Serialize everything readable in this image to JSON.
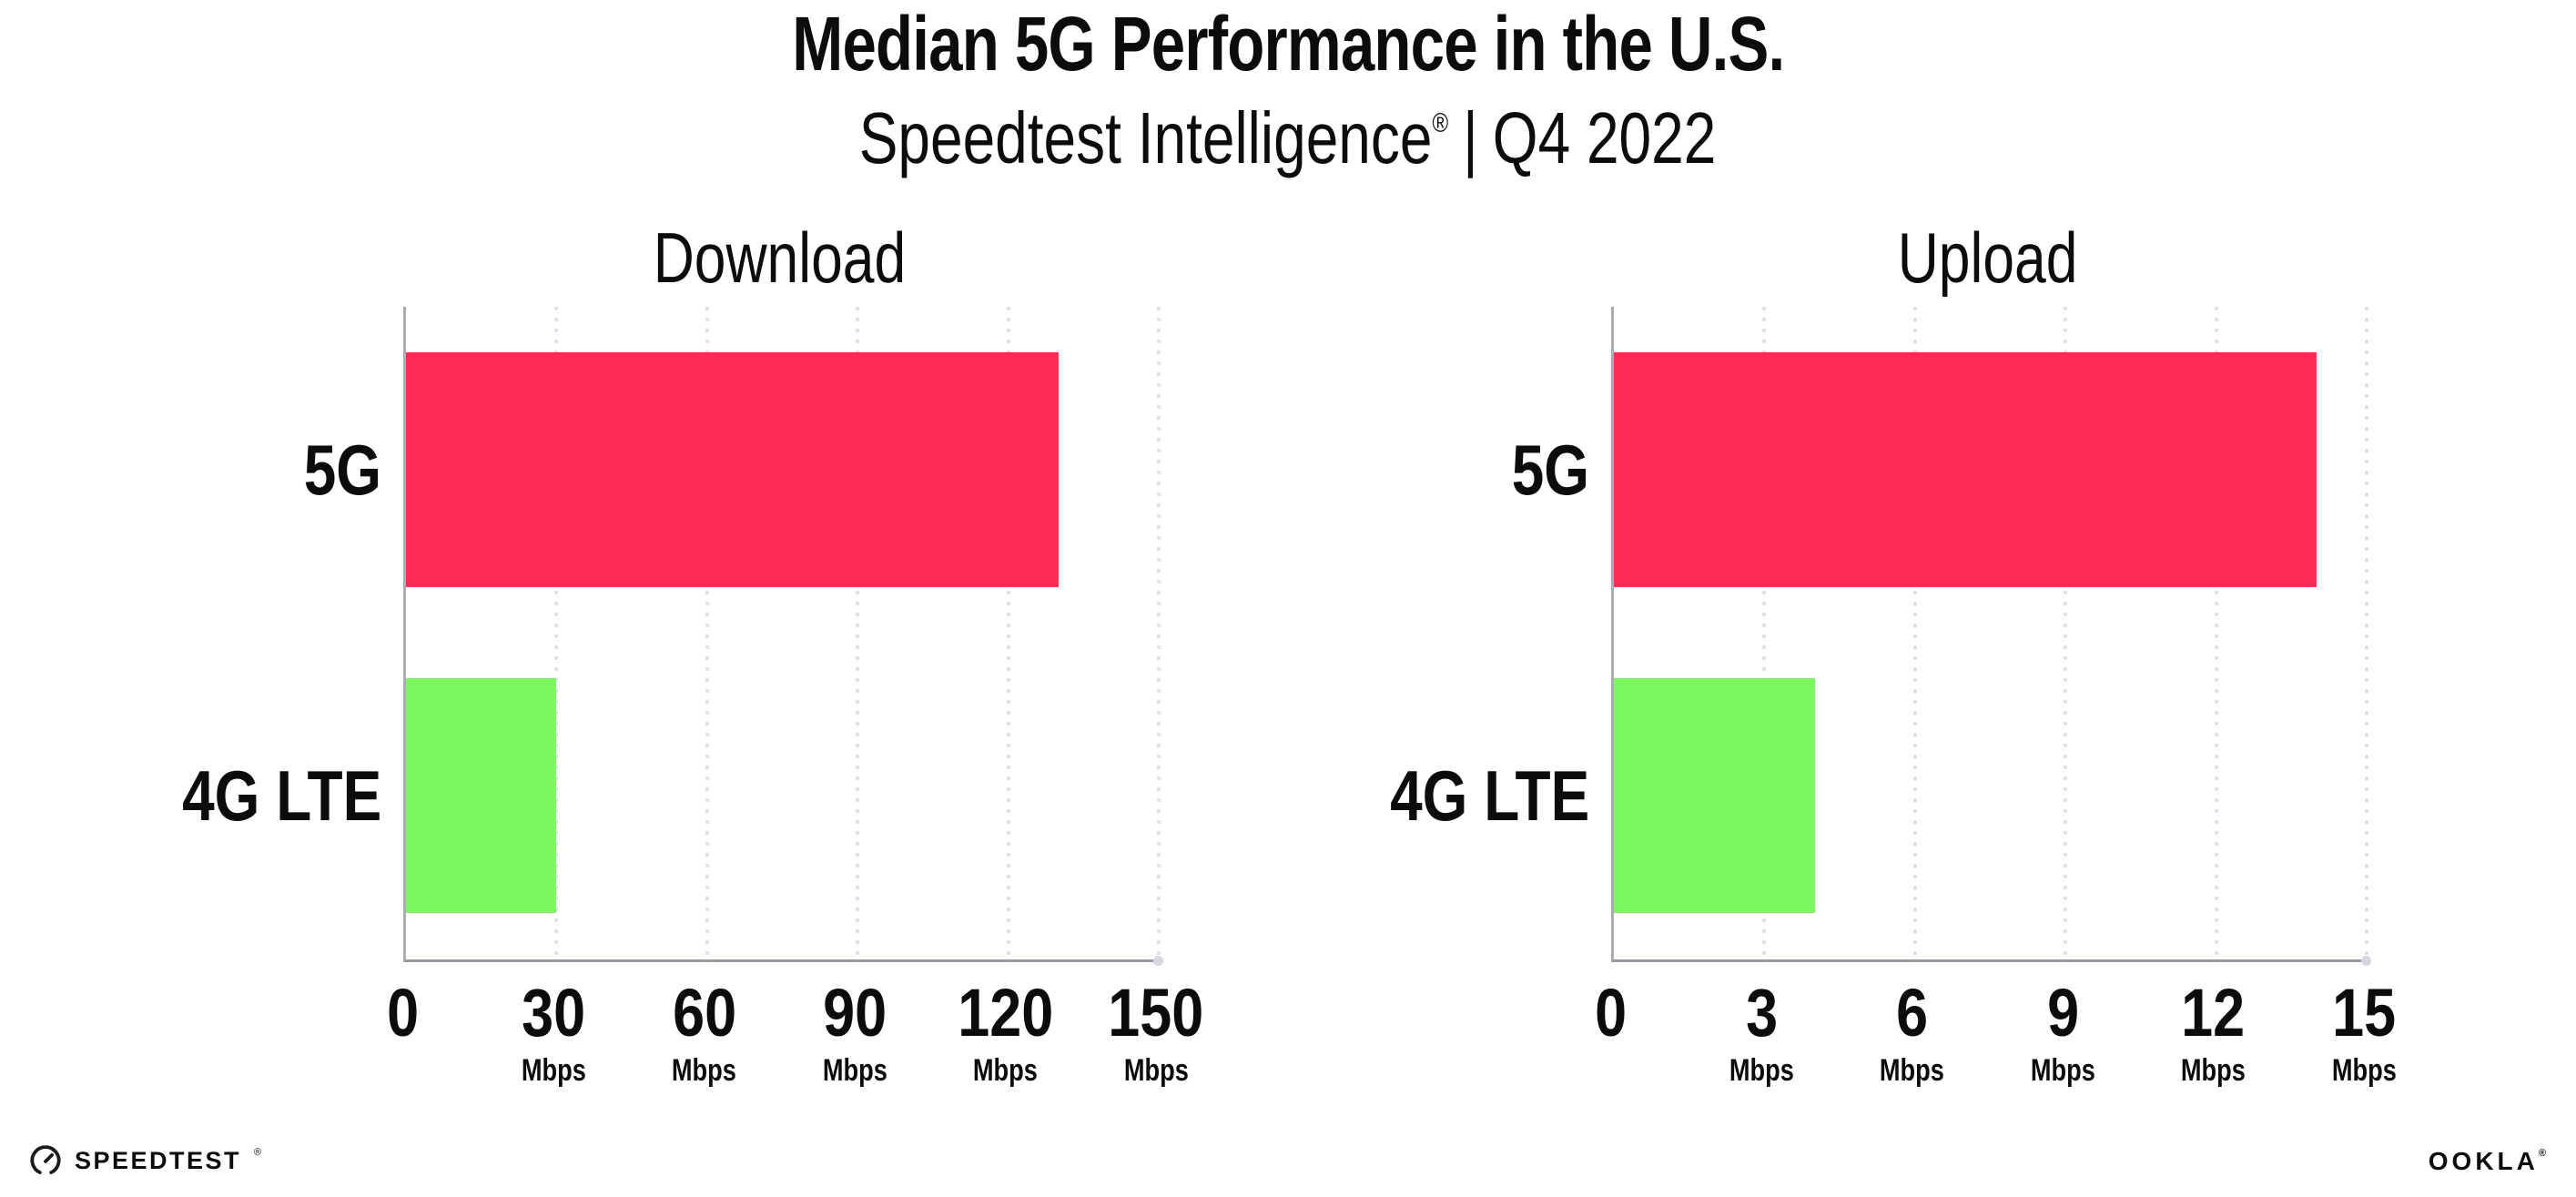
{
  "header": {
    "title": "Median 5G Performance in the U.S.",
    "subtitle_brand": "Speedtest Intelligence",
    "subtitle_reg": "®",
    "subtitle_divider": "|",
    "subtitle_period": "Q4 2022"
  },
  "colors": {
    "bar_5g": "#FF2E56",
    "bar_4g_lte": "#7DF761",
    "axis": "#a6a6ae",
    "gridline": "#e0e0ea",
    "text": "#0c0c0c",
    "background": "#ffffff"
  },
  "chart_data": [
    {
      "type": "bar",
      "orientation": "horizontal",
      "title": "Download",
      "categories": [
        "5G",
        "4G LTE"
      ],
      "values": [
        130,
        30
      ],
      "unit": "Mbps",
      "xlim": [
        0,
        150
      ],
      "tick_values": [
        0,
        30,
        60,
        90,
        120,
        150
      ],
      "x_ticks": [
        {
          "label": "0",
          "unit": ""
        },
        {
          "label": "30",
          "unit": "Mbps"
        },
        {
          "label": "60",
          "unit": "Mbps"
        },
        {
          "label": "90",
          "unit": "Mbps"
        },
        {
          "label": "120",
          "unit": "Mbps"
        },
        {
          "label": "150",
          "unit": "Mbps"
        }
      ],
      "bar_colors": [
        "#FF2E56",
        "#7DF761"
      ],
      "grid": "dotted-vertical",
      "legend": false
    },
    {
      "type": "bar",
      "orientation": "horizontal",
      "title": "Upload",
      "categories": [
        "5G",
        "4G LTE"
      ],
      "values": [
        14,
        4
      ],
      "unit": "Mbps",
      "xlim": [
        0,
        15
      ],
      "tick_values": [
        0,
        3,
        6,
        9,
        12,
        15
      ],
      "x_ticks": [
        {
          "label": "0",
          "unit": ""
        },
        {
          "label": "3",
          "unit": "Mbps"
        },
        {
          "label": "6",
          "unit": "Mbps"
        },
        {
          "label": "9",
          "unit": "Mbps"
        },
        {
          "label": "12",
          "unit": "Mbps"
        },
        {
          "label": "15",
          "unit": "Mbps"
        }
      ],
      "bar_colors": [
        "#FF2E56",
        "#7DF761"
      ],
      "grid": "dotted-vertical",
      "legend": false
    }
  ],
  "footer": {
    "speedtest_logo_text": "SPEEDTEST",
    "speedtest_mark": "®",
    "ookla_logo_text": "OOKLA",
    "ookla_mark": "®"
  }
}
